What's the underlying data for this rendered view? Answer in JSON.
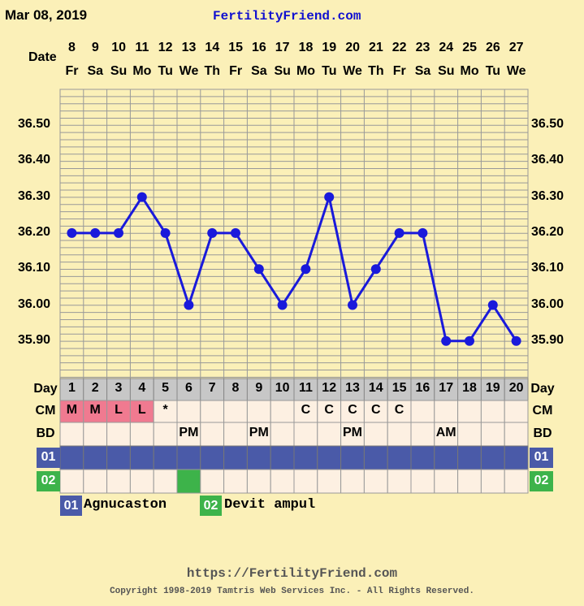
{
  "header": {
    "date": "Mar 08, 2019",
    "site": "FertilityFriend.com",
    "date_label": "Date"
  },
  "chart_data": {
    "type": "line",
    "dates": [
      "8",
      "9",
      "10",
      "11",
      "12",
      "13",
      "14",
      "15",
      "16",
      "17",
      "18",
      "19",
      "20",
      "21",
      "22",
      "23",
      "24",
      "25",
      "26",
      "27"
    ],
    "weekdays": [
      "Fr",
      "Sa",
      "Su",
      "Mo",
      "Tu",
      "We",
      "Th",
      "Fr",
      "Sa",
      "Su",
      "Mo",
      "Tu",
      "We",
      "Th",
      "Fr",
      "Sa",
      "Su",
      "Mo",
      "Tu",
      "We"
    ],
    "cycle_days": [
      "1",
      "2",
      "3",
      "4",
      "5",
      "6",
      "7",
      "8",
      "9",
      "10",
      "11",
      "12",
      "13",
      "14",
      "15",
      "16",
      "17",
      "18",
      "19",
      "20"
    ],
    "temperatures": [
      36.2,
      36.2,
      36.2,
      36.3,
      36.2,
      36.0,
      36.2,
      36.2,
      36.1,
      36.0,
      36.1,
      36.3,
      36.0,
      36.1,
      36.2,
      36.2,
      35.9,
      35.9,
      36.0,
      35.9
    ],
    "y_ticks": [
      "36.50",
      "36.40",
      "36.30",
      "36.20",
      "36.10",
      "36.00",
      "35.90"
    ],
    "ylim": [
      35.83,
      36.59
    ],
    "line_color": "#1a1adb",
    "grid": true,
    "rows": {
      "day_label": "Day",
      "cm_label": "CM",
      "cm": [
        "M",
        "M",
        "L",
        "L",
        "*",
        "",
        "",
        "",
        "",
        "",
        "C",
        "C",
        "C",
        "C",
        "C",
        "",
        "",
        "",
        "",
        ""
      ],
      "cm_colors": [
        "#f07a90",
        "#f07a90",
        "#f07a90",
        "#f07a90",
        "",
        "",
        "",
        "",
        "",
        "",
        "",
        "",
        "",
        "",
        "",
        "",
        "",
        "",
        "",
        ""
      ],
      "bd_label": "BD",
      "bd": [
        "",
        "",
        "",
        "",
        "",
        "PM",
        "",
        "",
        "PM",
        "",
        "",
        "",
        "PM",
        "",
        "",
        "",
        "AM",
        "",
        "",
        ""
      ],
      "med1_label": "01",
      "med1_days": [
        1,
        1,
        1,
        1,
        1,
        1,
        1,
        1,
        1,
        1,
        1,
        1,
        1,
        1,
        1,
        1,
        1,
        1,
        1,
        1
      ],
      "med1_color": "#4a5aa8",
      "med2_label": "02",
      "med2_days": [
        0,
        0,
        0,
        0,
        0,
        1,
        0,
        0,
        0,
        0,
        0,
        0,
        0,
        0,
        0,
        0,
        0,
        0,
        0,
        0
      ],
      "med2_color": "#3db34a"
    },
    "legend": [
      {
        "code": "01",
        "name": "Agnucaston",
        "color": "#4a5aa8"
      },
      {
        "code": "02",
        "name": "Devit ampul",
        "color": "#3db34a"
      }
    ]
  },
  "footer": {
    "url": "https://FertilityFriend.com",
    "copyright": "Copyright 1998-2019 Tamtris Web Services Inc. - All Rights Reserved."
  }
}
